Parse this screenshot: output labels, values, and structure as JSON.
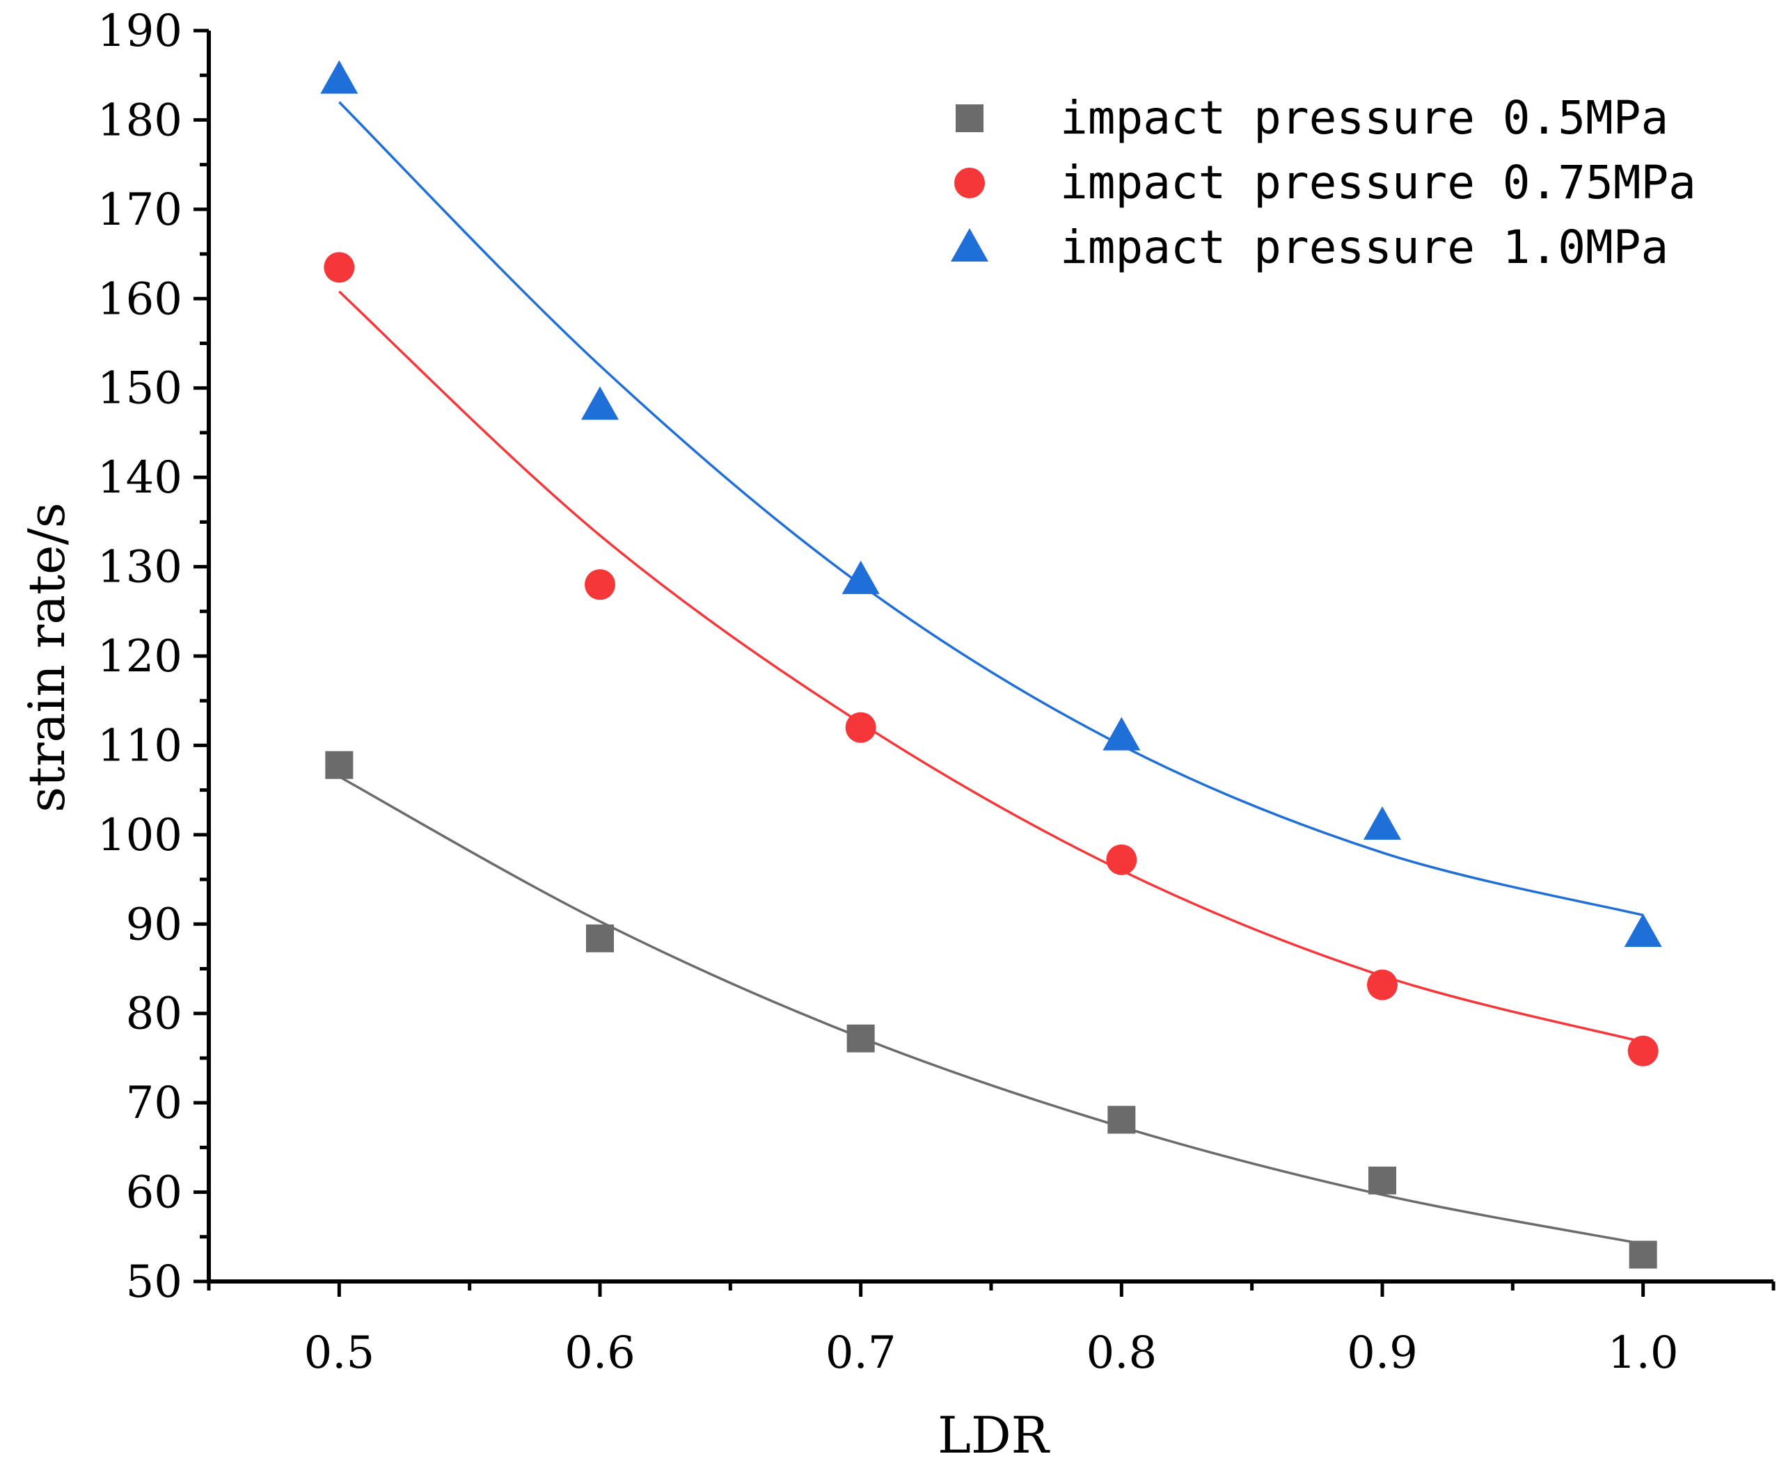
{
  "chart_data": {
    "type": "scatter",
    "title": "",
    "xlabel": "LDR",
    "ylabel": "strain rate/s",
    "xlim": [
      0.45,
      1.05
    ],
    "ylim": [
      50,
      190
    ],
    "x_ticks": [
      "0.5",
      "0.6",
      "0.7",
      "0.8",
      "0.9",
      "1.0"
    ],
    "y_ticks": [
      "50",
      "60",
      "70",
      "80",
      "90",
      "100",
      "110",
      "120",
      "130",
      "140",
      "150",
      "160",
      "170",
      "180",
      "190"
    ],
    "x": [
      0.5,
      0.6,
      0.7,
      0.8,
      0.9,
      1.0
    ],
    "legend_position": "top-right",
    "series": [
      {
        "name": "impact pressure 0.5MPa",
        "marker": "square",
        "color": "#6b6b6b",
        "values": [
          107.8,
          88.4,
          77.2,
          68.1,
          61.3,
          53.0
        ],
        "fit": [
          106.5,
          90.3,
          77.3,
          67.3,
          59.7,
          54.2
        ]
      },
      {
        "name": "impact pressure 0.75MPa",
        "marker": "circle",
        "color": "#f5373a",
        "values": [
          163.5,
          128.0,
          112.0,
          97.2,
          83.2,
          75.8
        ],
        "fit": [
          160.8,
          133.5,
          112.5,
          96.0,
          84.2,
          76.8
        ]
      },
      {
        "name": "impact pressure 1.0MPa",
        "marker": "triangle",
        "color": "#1f6fd8",
        "values": [
          184.5,
          148.0,
          128.5,
          111.0,
          101.0,
          89.0
        ],
        "fit": [
          182.0,
          152.5,
          128.0,
          110.0,
          98.0,
          91.0
        ]
      }
    ]
  }
}
